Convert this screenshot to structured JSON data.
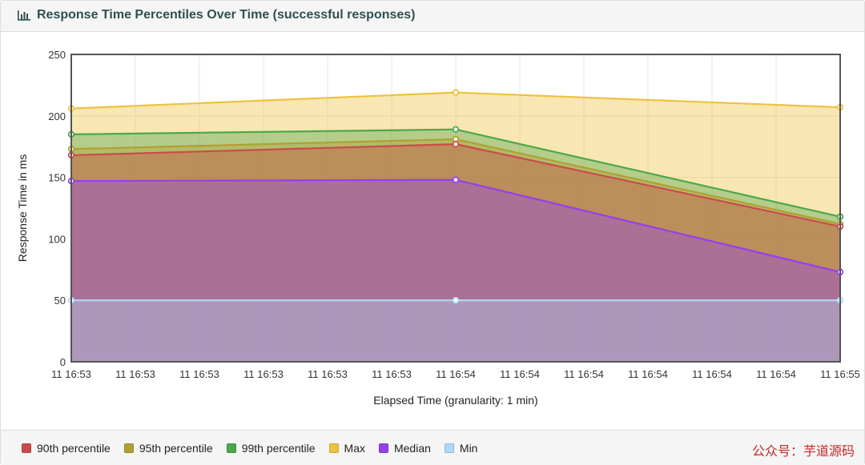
{
  "panel": {
    "title": "Response Time Percentiles Over Time (successful responses)",
    "title_icon": "bar-chart-icon"
  },
  "chart_data": {
    "type": "area",
    "ylabel": "Response Time in ms",
    "xlabel": "Elapsed Time (granularity: 1 min)",
    "ylim": [
      0,
      250
    ],
    "yticks": [
      0,
      50,
      100,
      150,
      200,
      250
    ],
    "grid": true,
    "legend_position": "bottom",
    "x_tick_labels": [
      "11 16:53",
      "11 16:53",
      "11 16:53",
      "11 16:53",
      "11 16:53",
      "11 16:53",
      "11 16:54",
      "11 16:54",
      "11 16:54",
      "11 16:54",
      "11 16:54",
      "11 16:54",
      "11 16:55"
    ],
    "x_points": [
      0,
      6,
      12
    ],
    "series": [
      {
        "name": "Max",
        "color": "#edc240",
        "values": [
          206,
          219,
          207
        ]
      },
      {
        "name": "99th percentile",
        "color": "#4da74d",
        "values": [
          185,
          189,
          118
        ]
      },
      {
        "name": "95th percentile",
        "color": "#afa032",
        "values": [
          173,
          181,
          112
        ]
      },
      {
        "name": "90th percentile",
        "color": "#cb4b4b",
        "values": [
          168,
          177,
          110
        ]
      },
      {
        "name": "Median",
        "color": "#9440ed",
        "values": [
          147,
          148,
          73
        ]
      },
      {
        "name": "Min",
        "color": "#afd8f8",
        "values": [
          50,
          50,
          50
        ]
      }
    ]
  },
  "legend": [
    {
      "label": "90th percentile",
      "color": "#cb4b4b"
    },
    {
      "label": "95th percentile",
      "color": "#afa032"
    },
    {
      "label": "99th percentile",
      "color": "#4da74d"
    },
    {
      "label": "Max",
      "color": "#edc240"
    },
    {
      "label": "Median",
      "color": "#9440ed"
    },
    {
      "label": "Min",
      "color": "#afd8f8"
    }
  ],
  "watermark": "公众号：芋道源码"
}
